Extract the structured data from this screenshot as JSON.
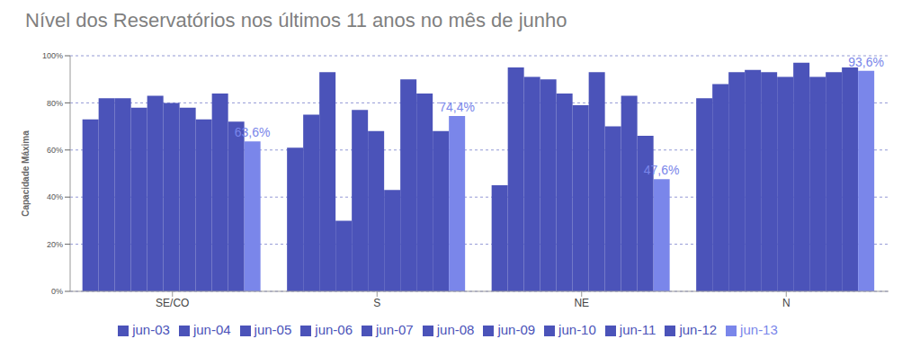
{
  "chart_data": {
    "type": "bar",
    "title": "Nível dos Reservatórios nos últimos 11 anos no mês de junho",
    "y_label": "Capacidade Máxima",
    "categories": [
      "SE/CO",
      "S",
      "NE",
      "N"
    ],
    "series": [
      {
        "name": "jun-03",
        "color": "#4b53b9",
        "values": [
          73,
          61,
          45,
          82
        ]
      },
      {
        "name": "jun-04",
        "color": "#4b53b9",
        "values": [
          82,
          75,
          95,
          88
        ]
      },
      {
        "name": "jun-05",
        "color": "#4b53b9",
        "values": [
          82,
          93,
          91,
          93
        ]
      },
      {
        "name": "jun-06",
        "color": "#4b53b9",
        "values": [
          78,
          30,
          90,
          94
        ]
      },
      {
        "name": "jun-07",
        "color": "#4b53b9",
        "values": [
          83,
          77,
          84,
          93
        ]
      },
      {
        "name": "jun-08",
        "color": "#4b53b9",
        "values": [
          80,
          68,
          79,
          91
        ]
      },
      {
        "name": "jun-09",
        "color": "#4b53b9",
        "values": [
          78,
          43,
          93,
          97
        ]
      },
      {
        "name": "jun-10",
        "color": "#4b53b9",
        "values": [
          73,
          90,
          70,
          91
        ]
      },
      {
        "name": "jun-11",
        "color": "#4b53b9",
        "values": [
          84,
          84,
          83,
          93
        ]
      },
      {
        "name": "jun-12",
        "color": "#4b53b9",
        "values": [
          72,
          68,
          66,
          95
        ]
      },
      {
        "name": "jun-13",
        "color": "#7a86ea",
        "values": [
          63.6,
          74.4,
          47.6,
          93.6
        ],
        "value_labels": [
          "63,6%",
          "74,4%",
          "47,6%",
          "93,6%"
        ],
        "data_labels": true
      }
    ],
    "ylim": [
      0,
      100
    ],
    "yticks": [
      {
        "value": 0,
        "label": "0%"
      },
      {
        "value": 20,
        "label": "20%"
      },
      {
        "value": 40,
        "label": "40%"
      },
      {
        "value": 60,
        "label": "60%"
      },
      {
        "value": 80,
        "label": "80%"
      },
      {
        "value": 100,
        "label": "100%"
      }
    ],
    "grid": true,
    "legend": "bottom"
  }
}
